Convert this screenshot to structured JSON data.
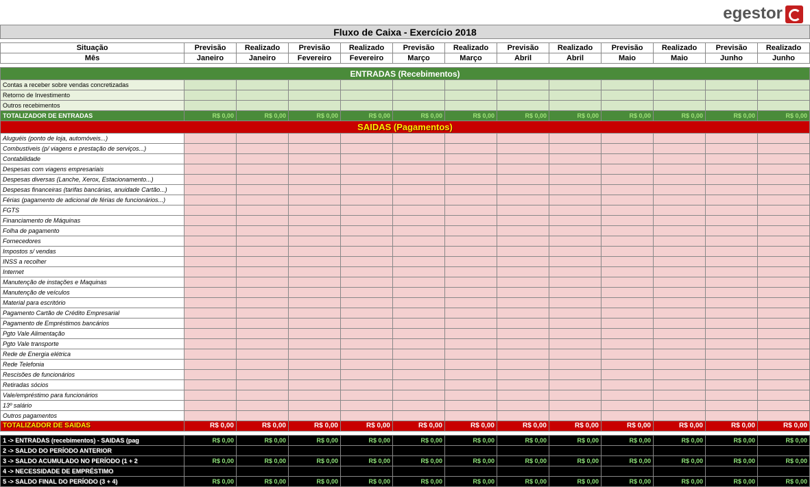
{
  "logo_text": "egestor",
  "title": "Fluxo de Caixa - Exercício 2018",
  "header": {
    "row1_label": "Situação",
    "row2_label": "Mês",
    "cols_type": [
      "Previsão",
      "Realizado",
      "Previsão",
      "Realizado",
      "Previsão",
      "Realizado",
      "Previsão",
      "Realizado",
      "Previsão",
      "Realizado",
      "Previsão",
      "Realizado"
    ],
    "cols_month": [
      "Janeiro",
      "Janeiro",
      "Fevereiro",
      "Fevereiro",
      "Março",
      "Março",
      "Abril",
      "Abril",
      "Maio",
      "Maio",
      "Junho",
      "Junho"
    ]
  },
  "entradas": {
    "section_title": "ENTRADAS (Recebimentos)",
    "rows": [
      "Contas a receber sobre vendas concretizadas",
      "Retorno de Investimento",
      "Outros recebimentos"
    ],
    "total_label": "TOTALIZADOR DE ENTRADAS",
    "total_values": [
      "R$ 0,00",
      "R$ 0,00",
      "R$ 0,00",
      "R$ 0,00",
      "R$ 0,00",
      "R$ 0,00",
      "R$ 0,00",
      "R$ 0,00",
      "R$ 0,00",
      "R$ 0,00",
      "R$ 0,00",
      "R$ 0,00"
    ]
  },
  "saidas": {
    "section_title": "SAIDAS (Pagamentos)",
    "rows": [
      "Aluguéis (ponto de loja, automóveis...)",
      "Combustíveis (p/ viagens e prestação de serviços...)",
      "Contabilidade",
      "Despesas com viagens empresariais",
      "Despesas diversas (Lanche, Xerox, Estacionamento...)",
      "Despesas financeiras (tarifas bancárias, anuidade Cartão...)",
      "Férias (pagamento de adicional de férias de funcionários...)",
      "FGTS",
      "Financiamento de Máquinas",
      "Folha de pagamento",
      "Fornecedores",
      "Impostos s/ vendas",
      "INSS a recolher",
      "Internet",
      "Manutenção de instações e Maquinas",
      "Manutenção de veículos",
      "Material para escritório",
      "Pagamento Cartão de Crédito Empresarial",
      "Pagamento de Empréstimos bancários",
      "Pgto Vale Alimentação",
      "Pgto Vale transporte",
      "Rede de Energia elétrica",
      "Rede Telefonia",
      "Rescisões de funcionários",
      "Retiradas sócios",
      "Vale/empréstimo para funcionários",
      "13º salário",
      "Outros pagamentos"
    ],
    "total_label": "TOTALIZADOR DE SAIDAS",
    "total_values": [
      "R$ 0,00",
      "R$ 0,00",
      "R$ 0,00",
      "R$ 0,00",
      "R$ 0,00",
      "R$ 0,00",
      "R$ 0,00",
      "R$ 0,00",
      "R$ 0,00",
      "R$ 0,00",
      "R$ 0,00",
      "R$ 0,00"
    ]
  },
  "summary": {
    "rows": [
      {
        "label": "1 -> ENTRADAS (recebimentos) - SAIDAS (pag",
        "values": [
          "R$ 0,00",
          "R$ 0,00",
          "R$ 0,00",
          "R$ 0,00",
          "R$ 0,00",
          "R$ 0,00",
          "R$ 0,00",
          "R$ 0,00",
          "R$ 0,00",
          "R$ 0,00",
          "R$ 0,00",
          "R$ 0,00"
        ]
      },
      {
        "label": "2 -> SALDO DO PERÍODO ANTERIOR",
        "values": [
          "",
          "",
          "",
          "",
          "",
          "",
          "",
          "",
          "",
          "",
          "",
          ""
        ]
      },
      {
        "label": "3 -> SALDO ACUMULADO NO PERÍODO (1 + 2",
        "values": [
          "R$ 0,00",
          "R$ 0,00",
          "R$ 0,00",
          "R$ 0,00",
          "R$ 0,00",
          "R$ 0,00",
          "R$ 0,00",
          "R$ 0,00",
          "R$ 0,00",
          "R$ 0,00",
          "R$ 0,00",
          "R$ 0,00"
        ]
      },
      {
        "label": "4 -> NECESSIDADE DE EMPRÉSTIMO",
        "values": [
          "",
          "",
          "",
          "",
          "",
          "",
          "",
          "",
          "",
          "",
          "",
          ""
        ]
      },
      {
        "label": "5 -> SALDO FINAL DO PERÍODO (3 + 4)",
        "values": [
          "R$ 0,00",
          "R$ 0,00",
          "R$ 0,00",
          "R$ 0,00",
          "R$ 0,00",
          "R$ 0,00",
          "R$ 0,00",
          "R$ 0,00",
          "R$ 0,00",
          "R$ 0,00",
          "R$ 0,00",
          "R$ 0,00"
        ]
      }
    ]
  },
  "colors": {
    "green_dark": "#4a8b3a",
    "green_light": "#d7e8c8",
    "red": "#c80000",
    "pink": "#f4d0d0",
    "black": "#000000",
    "title_gray": "#d9d9d9"
  }
}
